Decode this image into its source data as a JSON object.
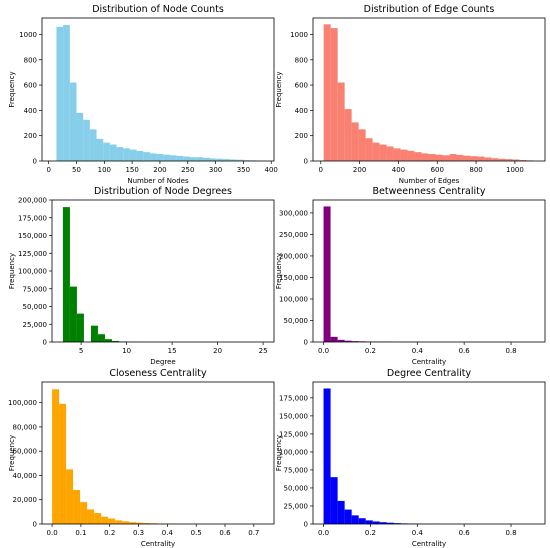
{
  "chart_data": [
    {
      "type": "bar",
      "title": "Distribution of Node Counts",
      "xlabel": "Number of Nodes",
      "ylabel": "Frequency",
      "color": "#87ceeb",
      "xlim": [
        -12,
        405
      ],
      "ylim": [
        0,
        1130
      ],
      "xticks": [
        0,
        50,
        100,
        150,
        200,
        250,
        300,
        350,
        400
      ],
      "yticks": [
        0,
        200,
        400,
        600,
        800,
        1000
      ],
      "bin_start": 14,
      "bin_width": 12,
      "values": [
        1060,
        1075,
        620,
        380,
        325,
        250,
        175,
        145,
        130,
        110,
        100,
        90,
        80,
        70,
        60,
        55,
        50,
        45,
        40,
        35,
        30,
        30,
        25,
        20,
        18,
        15,
        12,
        10,
        6,
        5
      ]
    },
    {
      "type": "bar",
      "title": "Distribution of Edge Counts",
      "xlabel": "Number of Edges",
      "ylabel": "Frequency",
      "color": "#fa8072",
      "xlim": [
        -40,
        1155
      ],
      "ylim": [
        0,
        1130
      ],
      "xticks": [
        0,
        200,
        400,
        600,
        800,
        1000
      ],
      "yticks": [
        0,
        200,
        400,
        600,
        800,
        1000
      ],
      "bin_start": 15,
      "bin_width": 36,
      "values": [
        1080,
        1050,
        620,
        410,
        305,
        250,
        180,
        145,
        130,
        115,
        100,
        90,
        80,
        70,
        60,
        55,
        50,
        45,
        55,
        48,
        42,
        38,
        35,
        28,
        22,
        18,
        15,
        12,
        8,
        5
      ]
    },
    {
      "type": "bar",
      "title": "Distribution of Node Degrees",
      "xlabel": "Degree",
      "ylabel": "Frequency",
      "color": "#008000",
      "xlim": [
        1.8,
        26.2
      ],
      "ylim": [
        0,
        200000
      ],
      "xticks": [
        5,
        10,
        15,
        20,
        25
      ],
      "yticks": [
        0,
        25000,
        50000,
        75000,
        100000,
        125000,
        150000,
        175000,
        200000
      ],
      "ytick_labels": [
        "0",
        "25,000",
        "50,000",
        "75,000",
        "100,000",
        "125,000",
        "150,000",
        "175,000",
        "200,000"
      ],
      "bin_start": 3,
      "bin_width": 0.77,
      "values": [
        190000,
        78000,
        40000,
        0,
        23000,
        11000,
        4000,
        1500,
        600,
        300,
        150,
        80,
        50,
        30,
        20,
        10,
        8,
        5,
        4,
        3,
        2,
        2,
        1,
        1,
        1,
        1,
        1,
        1,
        1,
        1
      ]
    },
    {
      "type": "bar",
      "title": "Betweenness Centrality",
      "xlabel": "Centrality",
      "ylabel": "Frequency",
      "color": "#800080",
      "xlim": [
        -0.045,
        0.945
      ],
      "ylim": [
        0,
        330000
      ],
      "xticks": [
        0.0,
        0.2,
        0.4,
        0.6,
        0.8
      ],
      "xtick_labels": [
        "0.0",
        "0.2",
        "0.4",
        "0.6",
        "0.8"
      ],
      "yticks": [
        0,
        50000,
        100000,
        150000,
        200000,
        250000,
        300000
      ],
      "ytick_labels": [
        "0",
        "50,000",
        "100,000",
        "150,000",
        "200,000",
        "250,000",
        "300,000"
      ],
      "bin_start": 0,
      "bin_width": 0.03,
      "values": [
        315000,
        12000,
        5000,
        3000,
        2000,
        1500,
        1000,
        800,
        600,
        500,
        400,
        300,
        250,
        200,
        150,
        100,
        80,
        60,
        40,
        30,
        20,
        15,
        10,
        8,
        6,
        4,
        3,
        2,
        1,
        1
      ]
    },
    {
      "type": "bar",
      "title": "Closeness Centrality",
      "xlabel": "Centrality",
      "ylabel": "Frequency",
      "color": "#ffa500",
      "xlim": [
        -0.035,
        0.77
      ],
      "ylim": [
        0,
        117000
      ],
      "xticks": [
        0.0,
        0.1,
        0.2,
        0.3,
        0.4,
        0.5,
        0.6,
        0.7
      ],
      "xtick_labels": [
        "0.0",
        "0.1",
        "0.2",
        "0.3",
        "0.4",
        "0.5",
        "0.6",
        "0.7"
      ],
      "yticks": [
        0,
        20000,
        40000,
        60000,
        80000,
        100000
      ],
      "ytick_labels": [
        "0",
        "20,000",
        "40,000",
        "60,000",
        "80,000",
        "100,000"
      ],
      "bin_start": 0,
      "bin_width": 0.0243,
      "values": [
        111000,
        99000,
        45000,
        28000,
        18000,
        12000,
        9000,
        6000,
        4500,
        3000,
        2200,
        1500,
        1100,
        800,
        600,
        400,
        300,
        200,
        150,
        100,
        80,
        60,
        40,
        30,
        20,
        15,
        10,
        5,
        3,
        2
      ]
    },
    {
      "type": "bar",
      "title": "Degree Centrality",
      "xlabel": "Centrality",
      "ylabel": "Frequency",
      "color": "#0000ff",
      "xlim": [
        -0.045,
        0.945
      ],
      "ylim": [
        0,
        197000
      ],
      "xticks": [
        0.0,
        0.2,
        0.4,
        0.6,
        0.8
      ],
      "xtick_labels": [
        "0.0",
        "0.2",
        "0.4",
        "0.6",
        "0.8"
      ],
      "yticks": [
        0,
        25000,
        50000,
        75000,
        100000,
        125000,
        150000,
        175000
      ],
      "ytick_labels": [
        "0",
        "25,000",
        "50,000",
        "75,000",
        "100,000",
        "125,000",
        "150,000",
        "175,000"
      ],
      "bin_start": 0,
      "bin_width": 0.03,
      "values": [
        188000,
        65000,
        32000,
        20000,
        12000,
        8000,
        5000,
        3500,
        2500,
        1800,
        1200,
        800,
        600,
        400,
        300,
        200,
        150,
        100,
        80,
        60,
        40,
        30,
        20,
        15,
        10,
        8,
        5,
        3,
        2,
        1
      ]
    }
  ]
}
